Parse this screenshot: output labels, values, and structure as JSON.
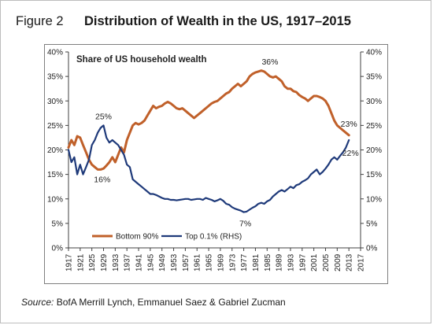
{
  "figure": {
    "label": "Figure 2",
    "title": "Distribution of Wealth in the US, 1917–2015",
    "source_label": "Source:",
    "source_text": " BofA Merrill Lynch, Emmanuel Saez & Gabriel Zucman"
  },
  "chart_data": {
    "type": "line",
    "title": "Share of US household wealth",
    "xlabel": "",
    "ylabel_left": "",
    "ylabel_right": "",
    "xlim": [
      1917,
      2017
    ],
    "ylim": [
      0,
      40
    ],
    "y2lim": [
      0,
      40
    ],
    "grid": false,
    "legend_position": "bottom-left",
    "x_ticks": [
      "1917",
      "1921",
      "1925",
      "1929",
      "1933",
      "1937",
      "1941",
      "1945",
      "1949",
      "1953",
      "1957",
      "1961",
      "1965",
      "1969",
      "1973",
      "1977",
      "1981",
      "1985",
      "1989",
      "1993",
      "1997",
      "2001",
      "2005",
      "2009",
      "2013",
      "2017"
    ],
    "y_ticks": [
      "0%",
      "5%",
      "10%",
      "15%",
      "20%",
      "25%",
      "30%",
      "35%",
      "40%"
    ],
    "y2_ticks": [
      "0%",
      "5%",
      "10%",
      "15%",
      "20%",
      "25%",
      "30%",
      "35%",
      "40%"
    ],
    "series": [
      {
        "name": "Bottom 90%",
        "axis": "left",
        "color": "#c0602a",
        "x": [
          1917,
          1918,
          1919,
          1920,
          1921,
          1922,
          1923,
          1924,
          1925,
          1926,
          1927,
          1928,
          1929,
          1930,
          1931,
          1932,
          1933,
          1934,
          1935,
          1936,
          1937,
          1938,
          1939,
          1940,
          1941,
          1942,
          1943,
          1944,
          1945,
          1946,
          1947,
          1948,
          1949,
          1950,
          1951,
          1952,
          1953,
          1954,
          1955,
          1956,
          1957,
          1958,
          1959,
          1960,
          1961,
          1962,
          1963,
          1964,
          1965,
          1966,
          1967,
          1968,
          1969,
          1970,
          1971,
          1972,
          1973,
          1974,
          1975,
          1976,
          1977,
          1978,
          1979,
          1980,
          1981,
          1982,
          1983,
          1984,
          1985,
          1986,
          1987,
          1988,
          1989,
          1990,
          1991,
          1992,
          1993,
          1994,
          1995,
          1996,
          1997,
          1998,
          1999,
          2000,
          2001,
          2002,
          2003,
          2004,
          2005,
          2006,
          2007,
          2008,
          2009,
          2010,
          2011,
          2012,
          2013
        ],
        "values": [
          20.5,
          22.0,
          21.0,
          22.8,
          22.5,
          21.0,
          19.5,
          18.0,
          17.0,
          16.5,
          16.0,
          16.0,
          16.2,
          16.8,
          17.5,
          18.5,
          17.5,
          19.0,
          20.5,
          19.5,
          22.0,
          23.5,
          25.0,
          25.5,
          25.2,
          25.5,
          26.0,
          27.0,
          28.0,
          29.0,
          28.5,
          28.8,
          29.0,
          29.5,
          29.8,
          29.5,
          29.0,
          28.5,
          28.3,
          28.5,
          28.0,
          27.5,
          27.0,
          26.5,
          27.0,
          27.5,
          28.0,
          28.5,
          29.0,
          29.5,
          29.8,
          30.0,
          30.5,
          31.0,
          31.5,
          31.8,
          32.5,
          33.0,
          33.5,
          33.0,
          33.5,
          34.0,
          35.0,
          35.5,
          35.8,
          36.0,
          36.2,
          36.0,
          35.5,
          35.0,
          34.8,
          35.0,
          34.5,
          34.0,
          33.0,
          32.5,
          32.5,
          32.0,
          31.8,
          31.2,
          30.8,
          30.5,
          30.0,
          30.5,
          31.0,
          31.0,
          30.8,
          30.5,
          30.0,
          29.0,
          27.5,
          26.0,
          25.0,
          24.5,
          24.0,
          23.5,
          23.0
        ]
      },
      {
        "name": "Top 0.1% (RHS)",
        "axis": "right",
        "color": "#1f3a7a",
        "x": [
          1917,
          1918,
          1919,
          1920,
          1921,
          1922,
          1923,
          1924,
          1925,
          1926,
          1927,
          1928,
          1929,
          1930,
          1931,
          1932,
          1933,
          1934,
          1935,
          1936,
          1937,
          1938,
          1939,
          1940,
          1941,
          1942,
          1943,
          1944,
          1945,
          1946,
          1947,
          1948,
          1949,
          1950,
          1951,
          1952,
          1953,
          1954,
          1955,
          1956,
          1957,
          1958,
          1959,
          1960,
          1961,
          1962,
          1963,
          1964,
          1965,
          1966,
          1967,
          1968,
          1969,
          1970,
          1971,
          1972,
          1973,
          1974,
          1975,
          1976,
          1977,
          1978,
          1979,
          1980,
          1981,
          1982,
          1983,
          1984,
          1985,
          1986,
          1987,
          1988,
          1989,
          1990,
          1991,
          1992,
          1993,
          1994,
          1995,
          1996,
          1997,
          1998,
          1999,
          2000,
          2001,
          2002,
          2003,
          2004,
          2005,
          2006,
          2007,
          2008,
          2009,
          2010,
          2011,
          2012,
          2013
        ],
        "values": [
          20.0,
          17.5,
          18.5,
          15.0,
          17.0,
          15.0,
          16.5,
          18.0,
          21.0,
          22.0,
          23.5,
          24.5,
          25.0,
          22.5,
          21.5,
          22.0,
          21.5,
          21.0,
          20.0,
          19.0,
          17.0,
          16.5,
          14.0,
          13.5,
          13.0,
          12.5,
          12.0,
          11.5,
          11.0,
          11.0,
          10.8,
          10.5,
          10.2,
          10.0,
          10.0,
          9.8,
          9.8,
          9.7,
          9.8,
          9.9,
          10.0,
          10.0,
          9.8,
          9.9,
          10.0,
          10.0,
          9.8,
          10.2,
          10.0,
          9.8,
          9.5,
          9.7,
          10.0,
          9.6,
          9.0,
          8.8,
          8.3,
          8.0,
          7.8,
          7.6,
          7.3,
          7.4,
          7.8,
          8.2,
          8.5,
          9.0,
          9.2,
          9.0,
          9.5,
          9.8,
          10.5,
          11.0,
          11.5,
          11.8,
          11.5,
          12.0,
          12.5,
          12.2,
          12.8,
          13.0,
          13.5,
          13.8,
          14.2,
          15.0,
          15.5,
          16.0,
          15.0,
          15.5,
          16.2,
          17.0,
          18.0,
          18.5,
          18.0,
          18.8,
          19.5,
          20.5,
          22.0
        ]
      }
    ],
    "annotations": [
      {
        "text": "36%",
        "series": "Bottom 90%",
        "x": 1986,
        "y": 36
      },
      {
        "text": "23%",
        "series": "Bottom 90%",
        "x": 2013,
        "y": 23
      },
      {
        "text": "16%",
        "series": "Bottom 90%",
        "x": 1928,
        "y": 16
      },
      {
        "text": "25%",
        "series": "Top 0.1% (RHS)",
        "x": 1929,
        "y": 25
      },
      {
        "text": "7%",
        "series": "Top 0.1% (RHS)",
        "x": 1977,
        "y": 7
      },
      {
        "text": "22%",
        "series": "Top 0.1% (RHS)",
        "x": 2013,
        "y": 22
      }
    ]
  }
}
